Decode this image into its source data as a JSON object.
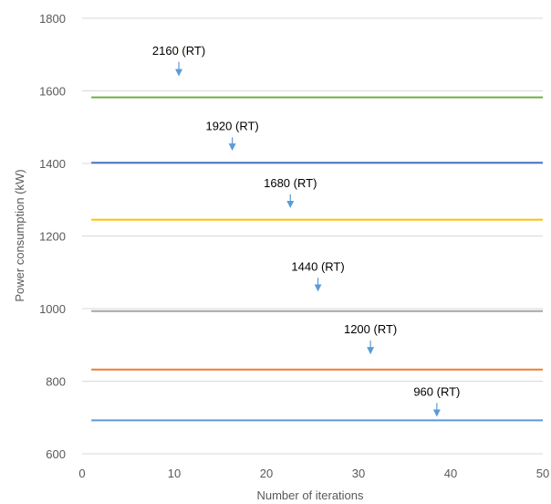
{
  "chart_data": {
    "type": "line",
    "title": "",
    "xlabel": "Number of iterations",
    "ylabel": "Power consumption (kW)",
    "xlim": [
      0,
      50
    ],
    "ylim": [
      600,
      1800
    ],
    "xticks": [
      0,
      10,
      20,
      30,
      40,
      50
    ],
    "yticks": [
      600,
      800,
      1000,
      1200,
      1400,
      1600,
      1800
    ],
    "grid": true,
    "legend": "none",
    "series": [
      {
        "x": [
          1,
          50
        ],
        "values": [
          1582,
          1582
        ],
        "color": "#70AD47"
      },
      {
        "x": [
          1,
          50
        ],
        "values": [
          1402,
          1402
        ],
        "color": "#4472C4"
      },
      {
        "x": [
          1,
          50
        ],
        "values": [
          1245,
          1245
        ],
        "color": "#FFC000"
      },
      {
        "x": [
          1,
          50
        ],
        "values": [
          993,
          993
        ],
        "color": "#A5A5A5"
      },
      {
        "x": [
          1,
          50
        ],
        "values": [
          832,
          832
        ],
        "color": "#ED7D31"
      },
      {
        "x": [
          1,
          50
        ],
        "values": [
          692,
          692
        ],
        "color": "#5B9BD5"
      }
    ],
    "annotations": [
      {
        "text": "2160 (RT)",
        "x": 10.5,
        "y": 1640,
        "text_x": 10.5,
        "text_y": 1700
      },
      {
        "text": "1920 (RT)",
        "x": 16.3,
        "y": 1435,
        "text_x": 16.3,
        "text_y": 1492
      },
      {
        "text": "1680 (RT)",
        "x": 22.6,
        "y": 1277,
        "text_x": 22.6,
        "text_y": 1335
      },
      {
        "text": "1440 (RT)",
        "x": 25.6,
        "y": 1047,
        "text_x": 25.6,
        "text_y": 1105
      },
      {
        "text": "1200 (RT)",
        "x": 31.3,
        "y": 874,
        "text_x": 31.3,
        "text_y": 932
      },
      {
        "text": "960 (RT)",
        "x": 38.5,
        "y": 702,
        "text_x": 38.5,
        "text_y": 760
      }
    ],
    "arrow_color": "#5B9BD5"
  }
}
